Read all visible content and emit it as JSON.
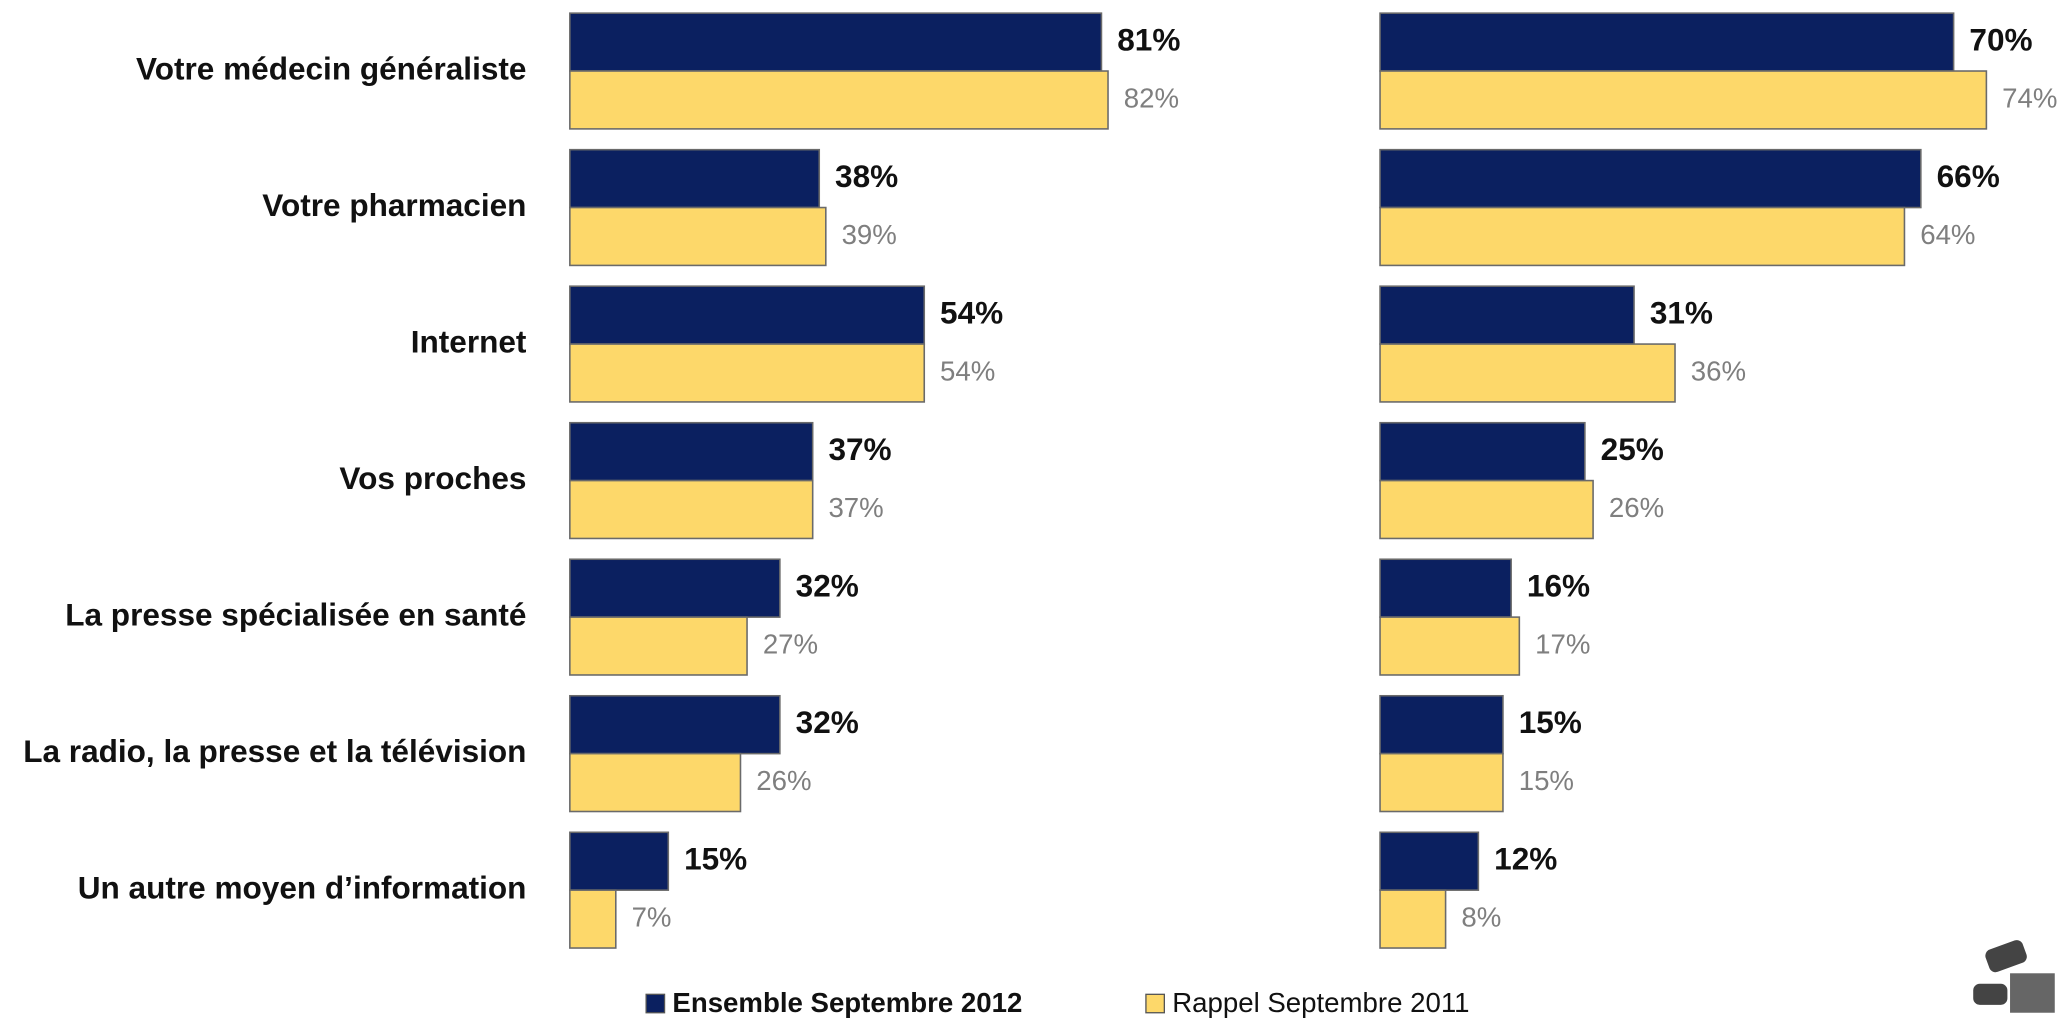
{
  "chart_data": {
    "type": "bar",
    "orientation": "horizontal",
    "categories": [
      "Votre médecin généraliste",
      "Votre pharmacien",
      "Internet",
      "Vos proches",
      "La presse spécialisée en santé",
      "La radio, la presse et la télévision",
      "Un autre moyen d’information"
    ],
    "series": [
      {
        "name": "Ensemble Septembre 2012",
        "color": "#0b2060",
        "panels": [
          {
            "values": [
              81,
              38,
              54,
              37,
              32,
              32,
              15
            ],
            "value_labels": [
              "81%",
              "38%",
              "54%",
              "37%",
              "32%",
              "32%",
              "15%"
            ]
          },
          {
            "values": [
              70,
              66,
              31,
              25,
              16,
              15,
              12
            ],
            "value_labels": [
              "70%",
              "66%",
              "31%",
              "25%",
              "16%",
              "15%",
              "12%"
            ]
          }
        ]
      },
      {
        "name": "Rappel Septembre 2011",
        "color": "#fdd86a",
        "panels": [
          {
            "values": [
              82,
              39,
              54,
              37,
              27,
              26,
              7
            ],
            "value_labels": [
              "82%",
              "39%",
              "54%",
              "37%",
              "27%",
              "26%",
              "7%"
            ]
          },
          {
            "values": [
              74,
              64,
              36,
              26,
              17,
              15,
              8
            ],
            "value_labels": [
              "74%",
              "64%",
              "36%",
              "26%",
              "17%",
              "15%",
              "8%"
            ]
          }
        ]
      }
    ]
  }
}
